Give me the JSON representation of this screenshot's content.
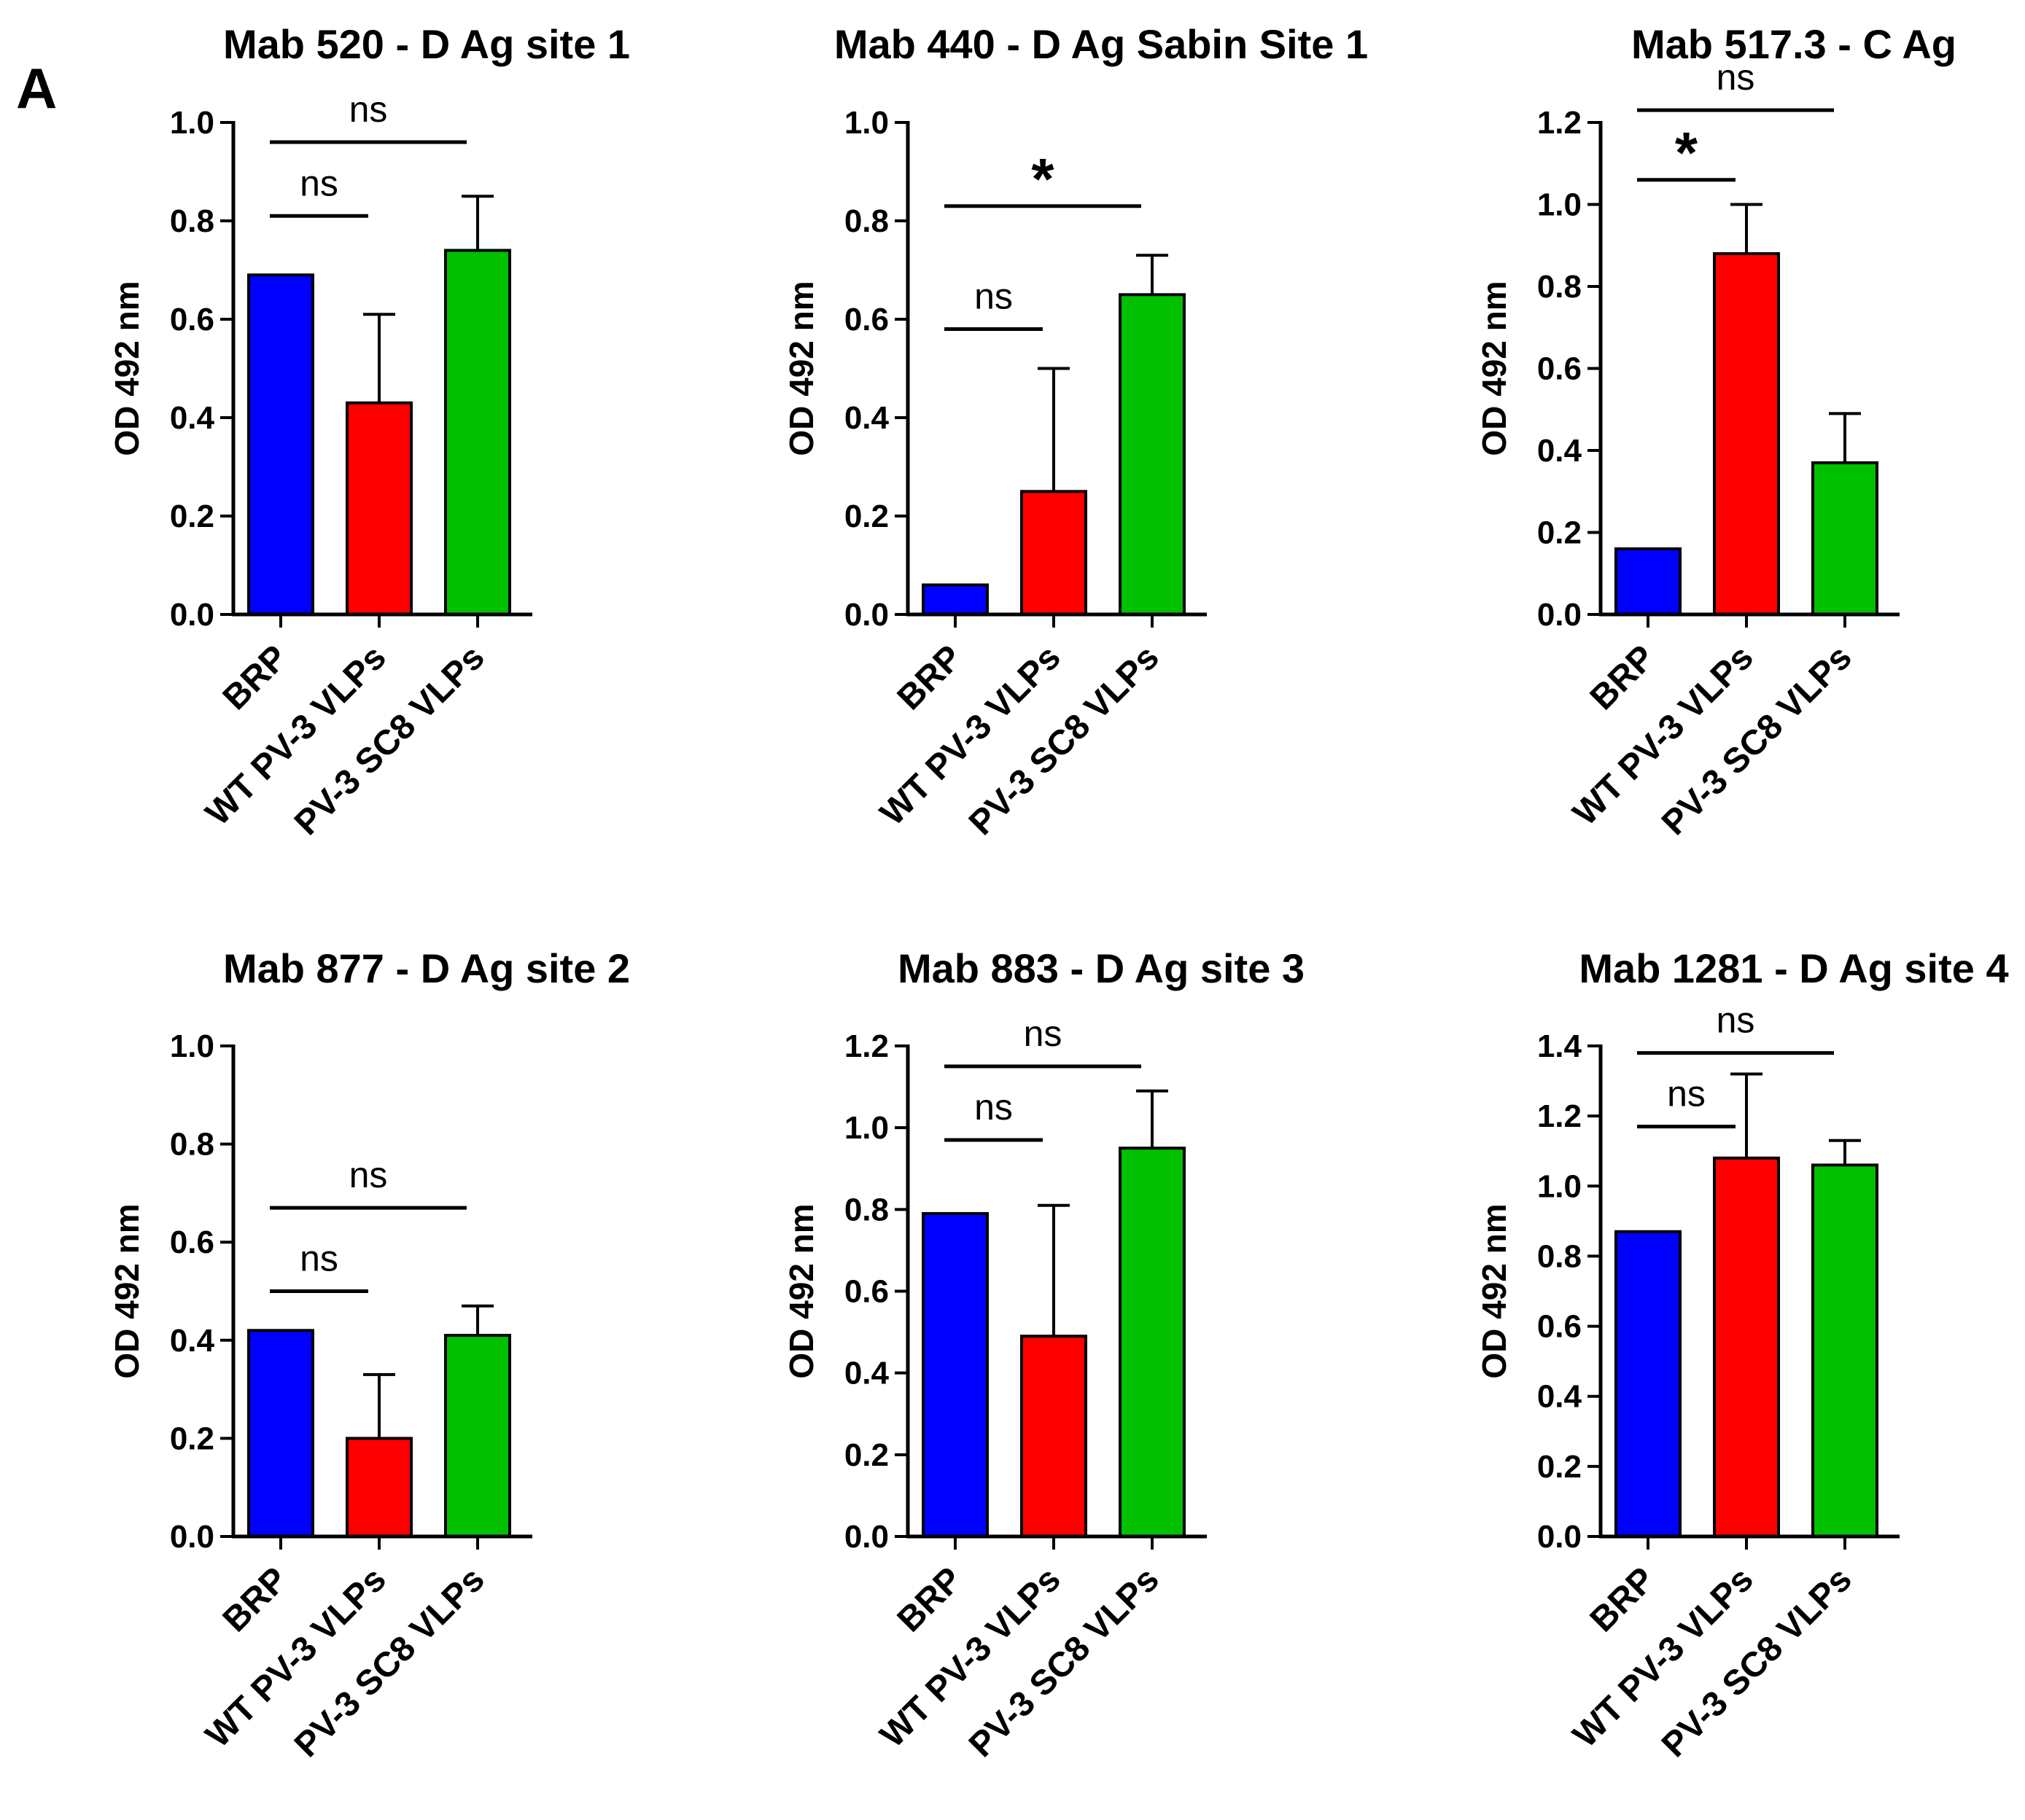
{
  "figure": {
    "panel_label": "A"
  },
  "colors": {
    "BRP": "#0000ff",
    "WT PV-3 VLPs": "#ff0000",
    "PV-3 SC8 VLPs": "#00c000"
  },
  "chart_data": [
    {
      "type": "bar",
      "title": "Mab 520 - D Ag site 1",
      "ylabel": "OD 492 nm",
      "categories": [
        "BRP",
        "WT PV-3 VLPs",
        "PV-3 SC8 VLPs"
      ],
      "values": [
        0.69,
        0.43,
        0.74
      ],
      "errors": [
        0,
        0.18,
        0.11
      ],
      "ylim": [
        0,
        1.0
      ],
      "yticks": [
        "0.0",
        "0.2",
        "0.4",
        "0.6",
        "0.8",
        "1.0"
      ],
      "significance": [
        {
          "from": 0,
          "to": 1,
          "label": "ns",
          "level": 0.81
        },
        {
          "from": 0,
          "to": 2,
          "label": "ns",
          "level": 0.96
        }
      ]
    },
    {
      "type": "bar",
      "title": "Mab 440 - D Ag Sabin Site 1",
      "ylabel": "OD 492 nm",
      "categories": [
        "BRP",
        "WT PV-3 VLPs",
        "PV-3 SC8 VLPs"
      ],
      "values": [
        0.06,
        0.25,
        0.65
      ],
      "errors": [
        0,
        0.25,
        0.08
      ],
      "ylim": [
        0,
        1.0
      ],
      "yticks": [
        "0.0",
        "0.2",
        "0.4",
        "0.6",
        "0.8",
        "1.0"
      ],
      "significance": [
        {
          "from": 0,
          "to": 1,
          "label": "ns",
          "level": 0.58
        },
        {
          "from": 0,
          "to": 2,
          "label": "*",
          "level": 0.83
        }
      ]
    },
    {
      "type": "bar",
      "title": "Mab 517.3 - C Ag",
      "ylabel": "OD 492 nm",
      "categories": [
        "BRP",
        "WT PV-3 VLPs",
        "PV-3 SC8 VLPs"
      ],
      "values": [
        0.16,
        0.88,
        0.37
      ],
      "errors": [
        0,
        0.12,
        0.12
      ],
      "ylim": [
        0,
        1.2
      ],
      "yticks": [
        "0.0",
        "0.2",
        "0.4",
        "0.6",
        "0.8",
        "1.0",
        "1.2"
      ],
      "significance": [
        {
          "from": 0,
          "to": 1,
          "label": "*",
          "level": 1.06
        },
        {
          "from": 0,
          "to": 2,
          "label": "ns",
          "level": 1.23
        }
      ]
    },
    {
      "type": "bar",
      "title": "Mab 877 - D Ag site 2",
      "ylabel": "OD 492 nm",
      "categories": [
        "BRP",
        "WT PV-3 VLPs",
        "PV-3 SC8 VLPs"
      ],
      "values": [
        0.42,
        0.2,
        0.41
      ],
      "errors": [
        0,
        0.13,
        0.06
      ],
      "ylim": [
        0,
        1.0
      ],
      "yticks": [
        "0.0",
        "0.2",
        "0.4",
        "0.6",
        "0.8",
        "1.0"
      ],
      "significance": [
        {
          "from": 0,
          "to": 1,
          "label": "ns",
          "level": 0.5
        },
        {
          "from": 0,
          "to": 2,
          "label": "ns",
          "level": 0.67
        }
      ]
    },
    {
      "type": "bar",
      "title": "Mab 883 - D Ag site 3",
      "ylabel": "OD 492 nm",
      "categories": [
        "BRP",
        "WT PV-3 VLPs",
        "PV-3 SC8 VLPs"
      ],
      "values": [
        0.79,
        0.49,
        0.95
      ],
      "errors": [
        0,
        0.32,
        0.14
      ],
      "ylim": [
        0,
        1.2
      ],
      "yticks": [
        "0.0",
        "0.2",
        "0.4",
        "0.6",
        "0.8",
        "1.0",
        "1.2"
      ],
      "significance": [
        {
          "from": 0,
          "to": 1,
          "label": "ns",
          "level": 0.97
        },
        {
          "from": 0,
          "to": 2,
          "label": "ns",
          "level": 1.15
        }
      ]
    },
    {
      "type": "bar",
      "title": "Mab 1281 - D Ag site 4",
      "ylabel": "OD 492 nm",
      "categories": [
        "BRP",
        "WT PV-3 VLPs",
        "PV-3 SC8 VLPs"
      ],
      "values": [
        0.87,
        1.08,
        1.06
      ],
      "errors": [
        0,
        0.24,
        0.07
      ],
      "ylim": [
        0,
        1.4
      ],
      "yticks": [
        "0.0",
        "0.2",
        "0.4",
        "0.6",
        "0.8",
        "1.0",
        "1.2",
        "1.4"
      ],
      "significance": [
        {
          "from": 0,
          "to": 1,
          "label": "ns",
          "level": 1.17
        },
        {
          "from": 0,
          "to": 2,
          "label": "ns",
          "level": 1.38
        }
      ]
    }
  ]
}
